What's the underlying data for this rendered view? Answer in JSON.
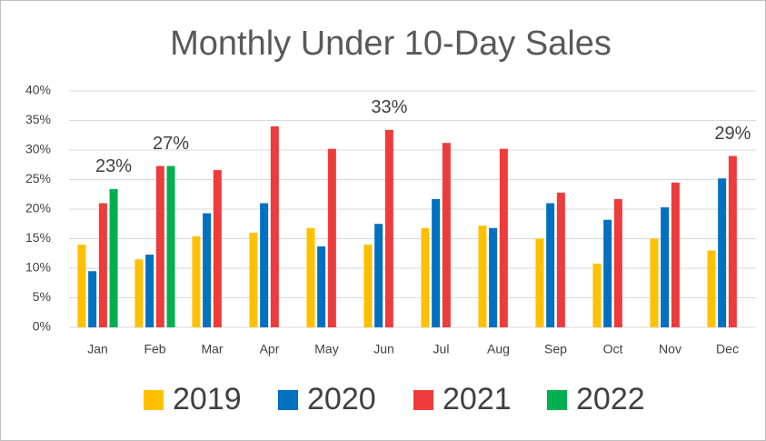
{
  "chart_data": {
    "type": "bar",
    "title": "Monthly Under 10-Day Sales",
    "categories": [
      "Jan",
      "Feb",
      "Mar",
      "Apr",
      "May",
      "Jun",
      "Jul",
      "Aug",
      "Sep",
      "Oct",
      "Nov",
      "Dec"
    ],
    "series": [
      {
        "name": "2019",
        "color": "#ffc000",
        "values": [
          14,
          11.5,
          15.4,
          16,
          16.8,
          14,
          16.8,
          17.2,
          15,
          10.8,
          15,
          13
        ]
      },
      {
        "name": "2020",
        "color": "#0070c0",
        "values": [
          9.5,
          12.3,
          19.3,
          21,
          13.7,
          17.5,
          21.7,
          16.8,
          21,
          18.2,
          20.3,
          25.2
        ]
      },
      {
        "name": "2021",
        "color": "#ee3b3b",
        "values": [
          21,
          27.3,
          26.6,
          34,
          30.2,
          33.4,
          31.2,
          30.2,
          22.8,
          21.7,
          24.5,
          29
        ],
        "value_labels": [
          null,
          null,
          null,
          null,
          null,
          "33%",
          null,
          null,
          null,
          null,
          null,
          "29%"
        ]
      },
      {
        "name": "2022",
        "color": "#00b050",
        "values": [
          23.4,
          27.3,
          null,
          null,
          null,
          null,
          null,
          null,
          null,
          null,
          null,
          null
        ],
        "value_labels": [
          "23%",
          "27%",
          null,
          null,
          null,
          null,
          null,
          null,
          null,
          null,
          null,
          null
        ]
      }
    ],
    "ylim": [
      0,
      40
    ],
    "yticks": [
      {
        "value": 0,
        "label": "0%"
      },
      {
        "value": 5,
        "label": "5%"
      },
      {
        "value": 10,
        "label": "10%"
      },
      {
        "value": 15,
        "label": "15%"
      },
      {
        "value": 20,
        "label": "20%"
      },
      {
        "value": 25,
        "label": "25%"
      },
      {
        "value": 30,
        "label": "30%"
      },
      {
        "value": 35,
        "label": "35%"
      },
      {
        "value": 40,
        "label": "40%"
      }
    ],
    "grid": true,
    "legend": "bottom"
  }
}
